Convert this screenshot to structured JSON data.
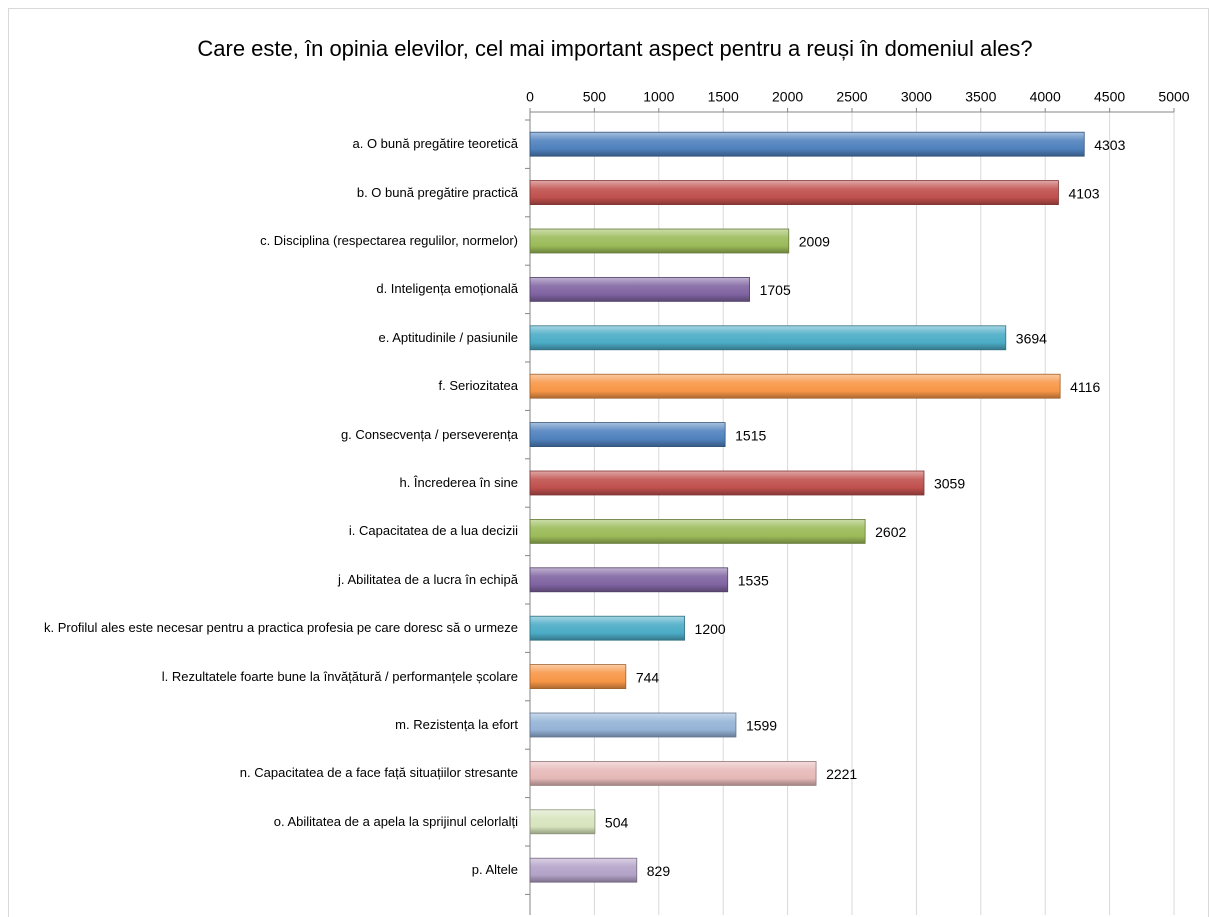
{
  "chart_data": {
    "type": "bar",
    "orientation": "horizontal",
    "title": "Care este, în opinia elevilor, cel mai important aspect pentru a reuși în domeniul ales?",
    "categories": [
      "a. O bună pregătire teoretică",
      "b. O bună pregătire practică",
      "c. Disciplina (respectarea regulilor, normelor)",
      "d. Inteligența emoțională",
      "e. Aptitudinile / pasiunile",
      "f. Seriozitatea",
      "g. Consecvența / perseverența",
      "h. Încrederea în sine",
      "i. Capacitatea de a lua decizii",
      "j. Abilitatea de a lucra în echipă",
      "k. Profilul ales este necesar pentru a practica profesia pe care doresc să o urmeze",
      "l. Rezultatele foarte bune la învățătură / performanțele școlare",
      "m. Rezistența la efort",
      "n. Capacitatea de a face față situațiilor stresante",
      "o. Abilitatea de a apela la sprijinul celorlalți",
      "p. Altele"
    ],
    "values": [
      4303,
      4103,
      2009,
      1705,
      3694,
      4116,
      1515,
      3059,
      2602,
      1535,
      1200,
      744,
      1599,
      2221,
      504,
      829
    ],
    "colors": [
      "#4f81bd",
      "#c0504d",
      "#9bbb59",
      "#8064a2",
      "#4bacc6",
      "#f79646",
      "#4f81bd",
      "#c0504d",
      "#9bbb59",
      "#8064a2",
      "#4bacc6",
      "#f79646",
      "#95b3d7",
      "#e6b9b8",
      "#d7e4bd",
      "#b3a2c7"
    ],
    "xlim": [
      0,
      5000
    ],
    "xticks": [
      0,
      500,
      1000,
      1500,
      2000,
      2500,
      3000,
      3500,
      4000,
      4500,
      5000
    ],
    "grid": true
  }
}
